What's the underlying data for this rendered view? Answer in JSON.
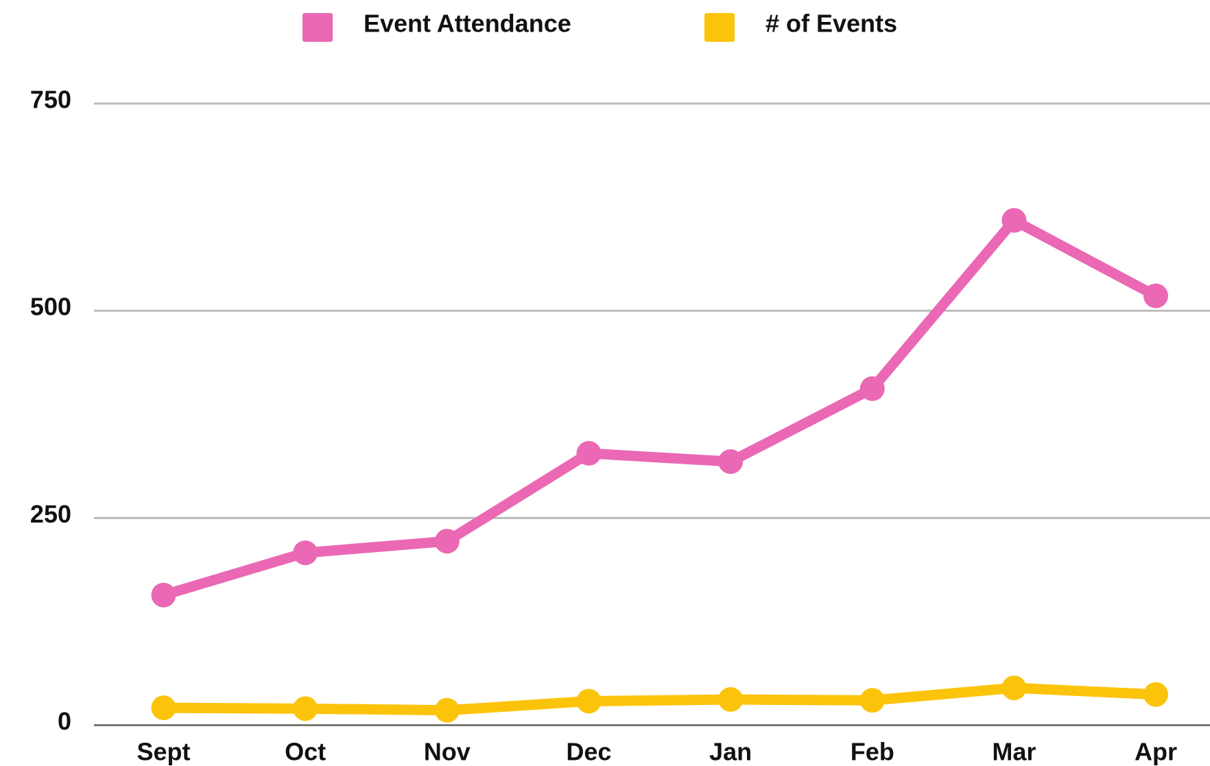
{
  "chart_data": {
    "type": "line",
    "categories": [
      "Sept",
      "Oct",
      "Nov",
      "Dec",
      "Jan",
      "Feb",
      "Mar",
      "Apr"
    ],
    "series": [
      {
        "name": "Event Attendance",
        "color": "#ea68b4",
        "values": [
          157,
          208,
          222,
          328,
          318,
          406,
          609,
          518
        ]
      },
      {
        "name": "# of Events",
        "color": "#fcc30b",
        "values": [
          21,
          20,
          18,
          29,
          31,
          30,
          45,
          37
        ]
      }
    ],
    "ylim": [
      0,
      750
    ],
    "yticks": [
      0,
      250,
      500,
      750
    ],
    "grid": true,
    "legend": "top"
  }
}
